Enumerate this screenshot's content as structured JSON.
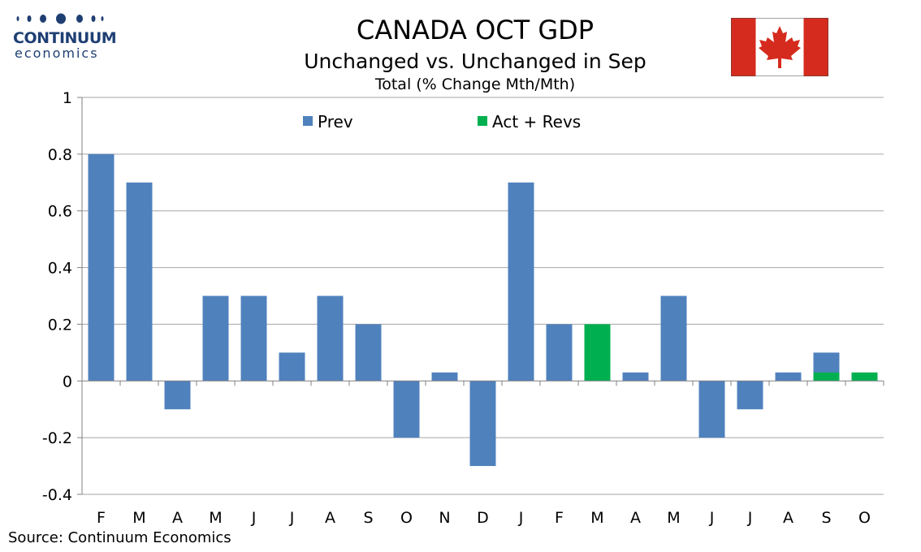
{
  "logo": {
    "brand": "CONTINUUM",
    "sub": "economics"
  },
  "flag": {
    "name": "canada-flag-icon",
    "red": "#d52b1e",
    "white": "#ffffff"
  },
  "source": "Source: Continuum Economics",
  "colors": {
    "prev": "#4f81bd",
    "act": "#00b050",
    "grid": "#a6a6a6",
    "axis": "#808080"
  },
  "chart_data": {
    "type": "bar",
    "title": "CANADA OCT GDP",
    "subtitle": "Unchanged vs. Unchanged in Sep",
    "subtitle2": "Total (% Change Mth/Mth)",
    "categories": [
      "F",
      "M",
      "A",
      "M",
      "J",
      "J",
      "A",
      "S",
      "O",
      "N",
      "D",
      "J",
      "F",
      "M",
      "A",
      "M",
      "J",
      "J",
      "A",
      "S",
      "O"
    ],
    "ylim": [
      -0.4,
      1
    ],
    "yticks": [
      -0.4,
      -0.2,
      0,
      0.2,
      0.4,
      0.6,
      0.8,
      1
    ],
    "ytick_labels": [
      "-0.4",
      "-0.2",
      "0",
      "0.2",
      "0.4",
      "0.6",
      "0.8",
      "1"
    ],
    "grid": true,
    "legend_position": "top",
    "series": [
      {
        "name": "Prev",
        "color": "#4f81bd",
        "values": [
          0.8,
          0.7,
          -0.1,
          0.3,
          0.3,
          0.1,
          0.3,
          0.2,
          -0.2,
          0.03,
          -0.3,
          0.7,
          0.2,
          0.1,
          0.03,
          0.3,
          -0.2,
          -0.1,
          0.03,
          0.1,
          null
        ]
      },
      {
        "name": "Act + Revs",
        "color": "#00b050",
        "values": [
          null,
          null,
          null,
          null,
          null,
          null,
          null,
          null,
          null,
          null,
          null,
          null,
          null,
          0.2,
          null,
          null,
          null,
          null,
          null,
          0.03,
          0.03
        ]
      }
    ]
  }
}
